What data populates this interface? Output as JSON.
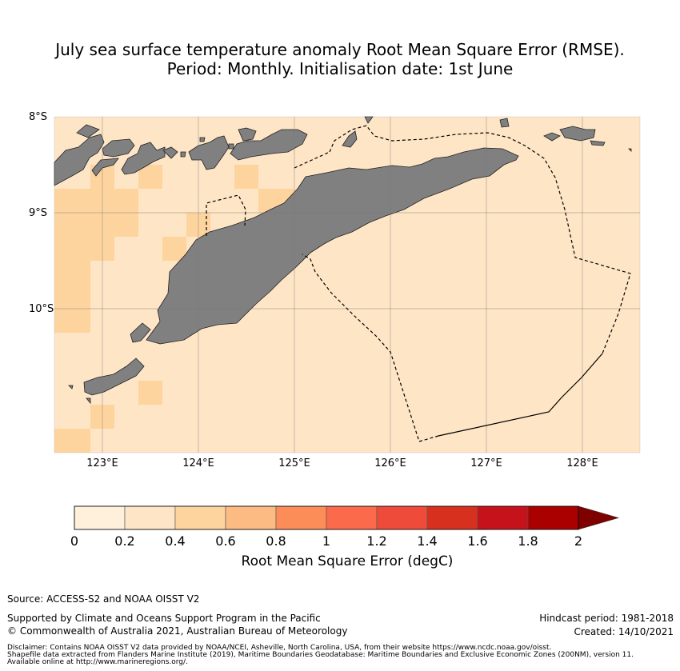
{
  "title": {
    "line1": "July sea surface temperature anomaly Root Mean Square Error (RMSE).",
    "line2": "Period: Monthly. Initialisation date: 1st June"
  },
  "map": {
    "lat_labels": [
      "8°S",
      "9°S",
      "10°S"
    ],
    "lon_labels": [
      "123°E",
      "124°E",
      "125°E",
      "126°E",
      "127°E",
      "128°E"
    ],
    "ocean_color": "#fee5c6",
    "land_color": "#808080"
  },
  "colorbar": {
    "title": "Root Mean Square Error (degC)",
    "ticks": [
      "0",
      "0.2",
      "0.4",
      "0.6",
      "0.8",
      "1",
      "1.2",
      "1.4",
      "1.6",
      "1.8",
      "2"
    ],
    "colors": [
      "#fff0dc",
      "#fee5c6",
      "#fdd49e",
      "#fdbb84",
      "#fc8d59",
      "#fb6a4a",
      "#ef4b3b",
      "#d7301f",
      "#c5121b",
      "#aa0000",
      "#7f0000"
    ]
  },
  "footer": {
    "source": "Source: ACCESS-S2 and NOAA OISST V2",
    "support": "Supported by Climate and Oceans Support Program in the Pacific",
    "copyright": "© Commonwealth of Australia 2021, Australian Bureau of Meteorology",
    "hindcast": "Hindcast period: 1981-2018",
    "created": "Created: 14/10/2021",
    "disclaimer1": "Disclaimer: Contains NOAA OISST V2 data provided by NOAA/NCEI, Asheville, North Carolina, USA, from their website https://www.ncdc.noaa.gov/oisst.",
    "disclaimer2": "Shapefile data extracted from Flanders Marine Institute (2019), Maritime Boundaries Geodatabase: Maritime Boundaries and Exclusive Economic Zones (200NM), version 11.",
    "disclaimer3": "Available online at http://www.marineregions.org/."
  }
}
